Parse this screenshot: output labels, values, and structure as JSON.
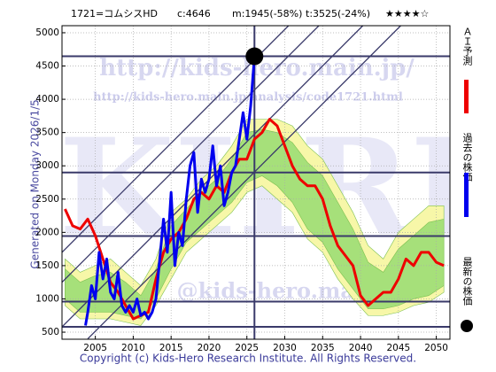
{
  "chart_data": {
    "type": "line",
    "header": {
      "code": "1721=コムシスHD",
      "current": "c:4646",
      "min": "m:1945(-58%)",
      "target": "t:3525(-24%)",
      "rating": "★★★★☆"
    },
    "ylabel": "Generated on Monday 2026/1/5.",
    "footer": "Copyright (c) Kids-Hero Research Institute. All Rights Reserved.",
    "watermarks": [
      "http://kids-hero.main.jp/",
      "http://kids-hero.main.jp/analysis/code1721.html",
      "KHRI",
      "@kids-hero.main.jp"
    ],
    "xlim": [
      2000.6,
      2051.8
    ],
    "ylim": [
      394,
      5106
    ],
    "xticks": [
      2005,
      2010,
      2015,
      2020,
      2025,
      2030,
      2035,
      2040,
      2045,
      2050
    ],
    "yticks": [
      500,
      1000,
      1500,
      2000,
      2500,
      3000,
      3500,
      4000,
      4500,
      5000
    ],
    "grid": true,
    "bands": [
      {
        "color": "#f7f7a8",
        "x": [
          2001,
          2003,
          2005,
          2007,
          2009,
          2011,
          2013,
          2015,
          2017,
          2019,
          2021,
          2023,
          2025,
          2027,
          2029,
          2031,
          2033,
          2035,
          2037,
          2039,
          2041,
          2043,
          2045,
          2047,
          2049,
          2051
        ],
        "upper": [
          1600,
          1400,
          1500,
          1600,
          1400,
          1200,
          1600,
          2300,
          2500,
          2800,
          3000,
          3300,
          3700,
          3700,
          3700,
          3600,
          3300,
          3100,
          2700,
          2300,
          1800,
          1600,
          2000,
          2200,
          2400,
          2400
        ],
        "lower": [
          900,
          700,
          700,
          700,
          650,
          600,
          900,
          1300,
          1700,
          1900,
          2100,
          2300,
          2600,
          2700,
          2500,
          2300,
          1900,
          1700,
          1300,
          1000,
          750,
          750,
          800,
          900,
          950,
          1100
        ]
      },
      {
        "color": "#a6e07a",
        "x": [
          2001,
          2003,
          2005,
          2007,
          2009,
          2011,
          2013,
          2015,
          2017,
          2019,
          2021,
          2023,
          2025,
          2027,
          2029,
          2031,
          2033,
          2035,
          2037,
          2039,
          2041,
          2043,
          2045,
          2047,
          2049,
          2051
        ],
        "upper": [
          1450,
          1250,
          1350,
          1400,
          1250,
          1050,
          1450,
          2100,
          2350,
          2600,
          2800,
          3100,
          3500,
          3550,
          3500,
          3350,
          3050,
          2850,
          2450,
          2050,
          1550,
          1400,
          1750,
          1950,
          2150,
          2200
        ],
        "lower": [
          1000,
          800,
          800,
          800,
          750,
          700,
          1000,
          1450,
          1850,
          2050,
          2250,
          2450,
          2750,
          2850,
          2700,
          2450,
          2050,
          1850,
          1450,
          1150,
          850,
          850,
          900,
          1000,
          1050,
          1200
        ]
      }
    ],
    "hlines": [
      4646,
      2900,
      1945,
      960,
      580
    ],
    "vline": 2026,
    "trend_lines": [
      {
        "x": [
          2000.6,
          2030.5
        ],
        "y": [
          1700,
          5106
        ]
      },
      {
        "x": [
          2000.6,
          2034.5
        ],
        "y": [
          1250,
          5106
        ]
      },
      {
        "x": [
          2000.6,
          2040.3
        ],
        "y": [
          580,
          5106
        ]
      },
      {
        "x": [
          2004,
          2045.3
        ],
        "y": [
          400,
          5106
        ]
      }
    ],
    "series": [
      {
        "name": "ＡＩ予測",
        "color": "#ee0000",
        "x": [
          2001,
          2002,
          2003,
          2004,
          2005,
          2006,
          2007,
          2008,
          2009,
          2010,
          2011,
          2012,
          2013,
          2014,
          2015,
          2016,
          2017,
          2018,
          2019,
          2020,
          2021,
          2022,
          2023,
          2024,
          2025,
          2026,
          2027,
          2028,
          2029,
          2030,
          2031,
          2032,
          2033,
          2034,
          2035,
          2036,
          2037,
          2038,
          2039,
          2040,
          2041,
          2042,
          2043,
          2044,
          2045,
          2046,
          2047,
          2048,
          2049,
          2050,
          2051
        ],
        "values": [
          2350,
          2100,
          2050,
          2200,
          1950,
          1600,
          1250,
          1100,
          900,
          700,
          750,
          800,
          1300,
          1700,
          1900,
          2000,
          2200,
          2500,
          2600,
          2500,
          2700,
          2600,
          2900,
          3100,
          3100,
          3400,
          3500,
          3700,
          3600,
          3300,
          3000,
          2800,
          2700,
          2700,
          2500,
          2100,
          1800,
          1650,
          1500,
          1050,
          900,
          1000,
          1100,
          1100,
          1300,
          1600,
          1500,
          1700,
          1700,
          1550,
          1500
        ]
      },
      {
        "name": "過去の株価",
        "color": "#0000ee",
        "x": [
          2003.7,
          2004,
          2004.5,
          2005,
          2005.5,
          2006,
          2006.5,
          2007,
          2007.5,
          2008,
          2008.5,
          2009,
          2009.5,
          2010,
          2010.5,
          2011,
          2011.5,
          2012,
          2012.5,
          2013,
          2013.5,
          2014,
          2014.5,
          2015,
          2015.5,
          2016,
          2016.5,
          2017,
          2017.5,
          2018,
          2018.5,
          2019,
          2019.5,
          2020,
          2020.5,
          2021,
          2021.5,
          2022,
          2022.5,
          2023,
          2023.5,
          2024,
          2024.5,
          2025,
          2025.5,
          2026
        ],
        "values": [
          600,
          800,
          1200,
          1000,
          1700,
          1300,
          1600,
          1100,
          1000,
          1400,
          900,
          800,
          900,
          800,
          1000,
          750,
          800,
          700,
          800,
          1000,
          1600,
          2200,
          1700,
          2600,
          1500,
          2000,
          1800,
          2500,
          3000,
          3200,
          2300,
          2800,
          2600,
          2800,
          3300,
          2700,
          3000,
          2400,
          2600,
          2900,
          3000,
          3400,
          3800,
          3400,
          3900,
          4646
        ]
      }
    ],
    "latest": {
      "name": "最新の株価",
      "color": "#000000",
      "x": 2026,
      "y": 4646
    }
  }
}
